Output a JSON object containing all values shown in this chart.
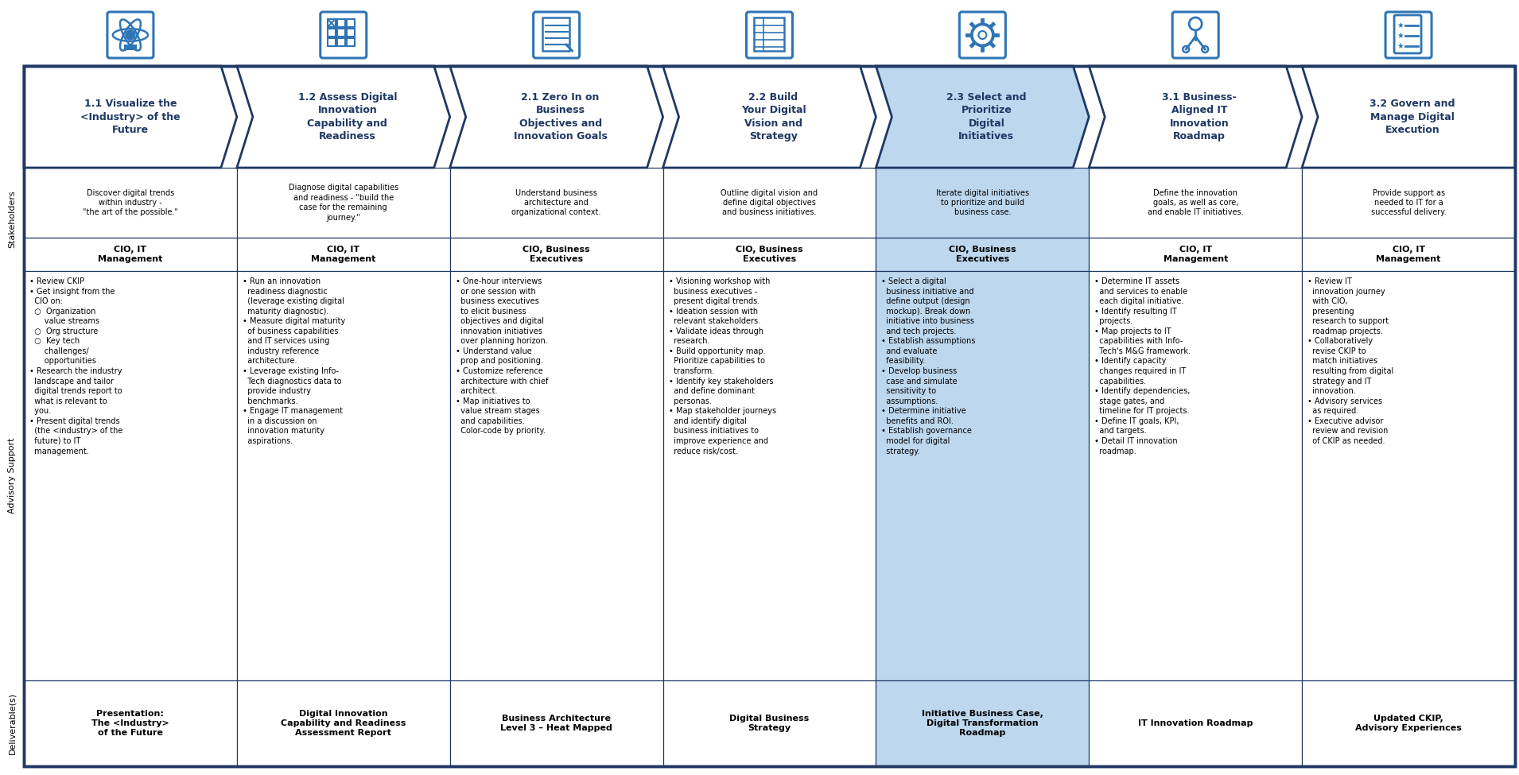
{
  "columns": [
    {
      "id": 1,
      "header": "1.1 Visualize the\n<Industry> of the\nFuture",
      "highlight": false,
      "description": "Discover digital trends\nwithin industry -\n\"the art of the possible.\"",
      "stakeholders": "CIO, IT\nManagement",
      "advisory": "• Review CKIP\n• Get insight from the\n  CIO on:\n  ○  Organization\n      value streams\n  ○  Org structure\n  ○  Key tech\n      challenges/\n      opportunities\n• Research the industry\n  landscape and tailor\n  digital trends report to\n  what is relevant to\n  you.\n• Present digital trends\n  (the <industry> of the\n  future) to IT\n  management.",
      "deliverable": "Presentation:\nThe <Industry>\nof the Future"
    },
    {
      "id": 2,
      "header": "1.2 Assess Digital\nInnovation\nCapability and\nReadiness",
      "highlight": false,
      "description": "Diagnose digital capabilities\nand readiness - \"build the\ncase for the remaining\njourney.\"",
      "stakeholders": "CIO, IT\nManagement",
      "advisory": "• Run an innovation\n  readiness diagnostic\n  (leverage existing digital\n  maturity diagnostic).\n• Measure digital maturity\n  of business capabilities\n  and IT services using\n  industry reference\n  architecture.\n• Leverage existing Info-\n  Tech diagnostics data to\n  provide industry\n  benchmarks.\n• Engage IT management\n  in a discussion on\n  innovation maturity\n  aspirations.",
      "deliverable": "Digital Innovation\nCapability and Readiness\nAssessment Report"
    },
    {
      "id": 3,
      "header": "2.1 Zero In on\nBusiness\nObjectives and\nInnovation Goals",
      "highlight": false,
      "description": "Understand business\narchitecture and\norganizational context.",
      "stakeholders": "CIO, Business\nExecutives",
      "advisory": "• One-hour interviews\n  or one session with\n  business executives\n  to elicit business\n  objectives and digital\n  innovation initiatives\n  over planning horizon.\n• Understand value\n  prop and positioning.\n• Customize reference\n  architecture with chief\n  architect.\n• Map initiatives to\n  value stream stages\n  and capabilities.\n  Color-code by priority.",
      "deliverable": "Business Architecture\nLevel 3 – Heat Mapped"
    },
    {
      "id": 4,
      "header": "2.2 Build\nYour Digital\nVision and\nStrategy",
      "highlight": false,
      "description": "Outline digital vision and\ndefine digital objectives\nand business initiatives.",
      "stakeholders": "CIO, Business\nExecutives",
      "advisory": "• Visioning workshop with\n  business executives -\n  present digital trends.\n• Ideation session with\n  relevant stakeholders.\n• Validate ideas through\n  research.\n• Build opportunity map.\n  Prioritize capabilities to\n  transform.\n• Identify key stakeholders\n  and define dominant\n  personas.\n• Map stakeholder journeys\n  and identify digital\n  business initiatives to\n  improve experience and\n  reduce risk/cost.",
      "deliverable": "Digital Business\nStrategy"
    },
    {
      "id": 5,
      "header": "2.3 Select and\nPrioritize\nDigital\nInitiatives",
      "highlight": true,
      "description": "Iterate digital initiatives\nto prioritize and build\nbusiness case.",
      "stakeholders": "CIO, Business\nExecutives",
      "advisory": "• Select a digital\n  business initiative and\n  define output (design\n  mockup). Break down\n  initiative into business\n  and tech projects.\n• Establish assumptions\n  and evaluate\n  feasibility.\n• Develop business\n  case and simulate\n  sensitivity to\n  assumptions.\n• Determine initiative\n  benefits and ROI.\n• Establish governance\n  model for digital\n  strategy.",
      "deliverable": "Initiative Business Case,\nDigital Transformation\nRoadmap"
    },
    {
      "id": 6,
      "header": "3.1 Business-\nAligned IT\nInnovation\nRoadmap",
      "highlight": false,
      "description": "Define the innovation\ngoals, as well as core,\nand enable IT initiatives.",
      "stakeholders": "CIO, IT\nManagement",
      "advisory": "• Determine IT assets\n  and services to enable\n  each digital initiative.\n• Identify resulting IT\n  projects.\n• Map projects to IT\n  capabilities with Info-\n  Tech's M&G framework.\n• Identify capacity\n  changes required in IT\n  capabilities.\n• Identify dependencies,\n  stage gates, and\n  timeline for IT projects.\n• Define IT goals, KPI,\n  and targets.\n• Detail IT innovation\n  roadmap.",
      "deliverable": "IT Innovation Roadmap"
    },
    {
      "id": 7,
      "header": "3.2 Govern and\nManage Digital\nExecution",
      "highlight": false,
      "description": "Provide support as\nneeded to IT for a\nsuccessful delivery.",
      "stakeholders": "CIO, IT\nManagement",
      "advisory": "• Review IT\n  innovation journey\n  with CIO,\n  presenting\n  research to support\n  roadmap projects.\n• Collaboratively\n  revise CKIP to\n  match initiatives\n  resulting from digital\n  strategy and IT\n  innovation.\n• Advisory services\n  as required.\n• Executive advisor\n  review and revision\n  of CKIP as needed.",
      "deliverable": "Updated CKIP,\nAdvisory Experiences"
    }
  ],
  "dark_blue": "#1F3864",
  "medium_blue": "#2E75B6",
  "light_blue_fill": "#BDD7EE",
  "row_label_fontsize": 8,
  "header_fontsize": 9,
  "body_fontsize": 7,
  "stake_fontsize": 8,
  "deliv_fontsize": 8
}
